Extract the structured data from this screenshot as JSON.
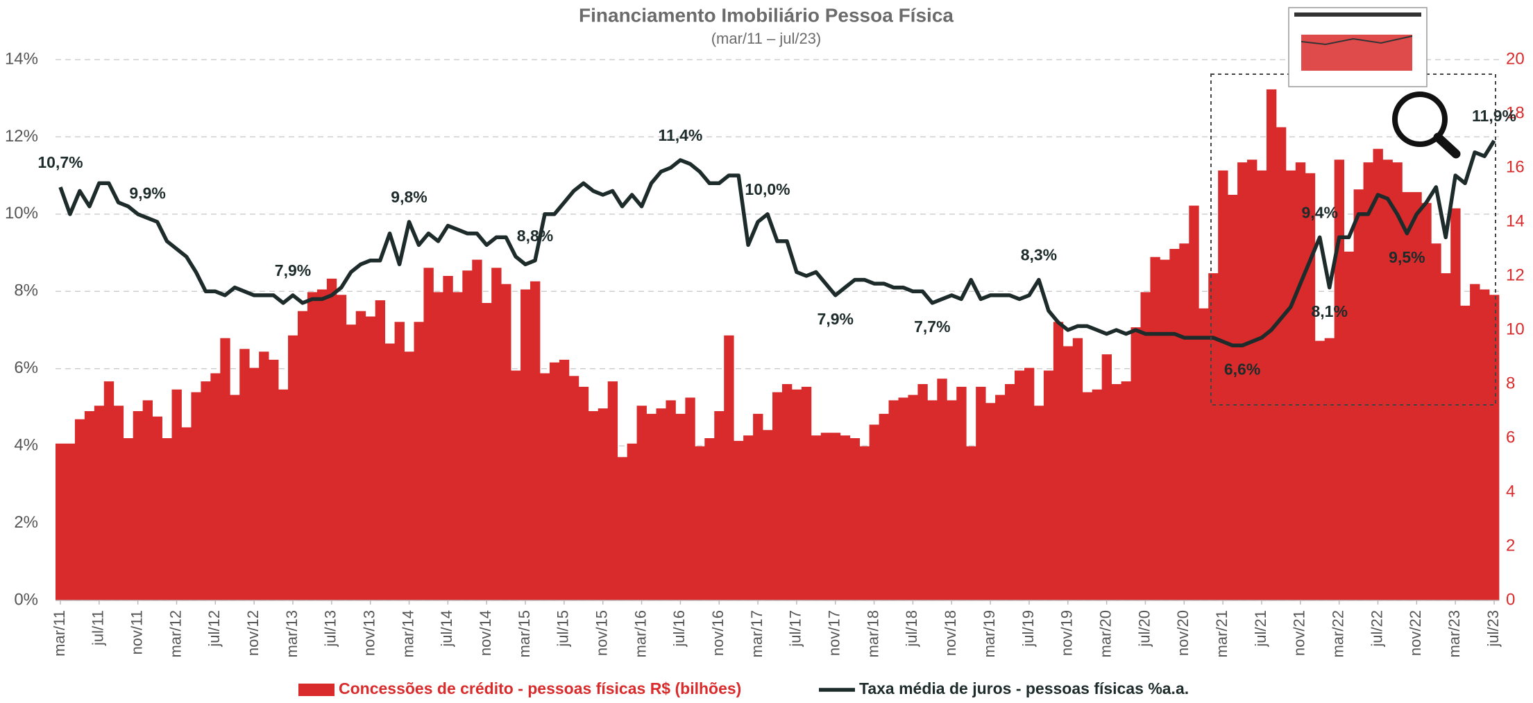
{
  "chart_data": {
    "type": "bar",
    "title": "Financiamento Imobiliário Pessoa Física",
    "subtitle": "(mar/11 – jul/23)",
    "categories": [
      "mar/11",
      null,
      null,
      null,
      "jul/11",
      null,
      null,
      null,
      "nov/11",
      null,
      null,
      null,
      "mar/12",
      null,
      null,
      null,
      "jul/12",
      null,
      null,
      null,
      "nov/12",
      null,
      null,
      null,
      "mar/13",
      null,
      null,
      null,
      "jul/13",
      null,
      null,
      null,
      "nov/13",
      null,
      null,
      null,
      "mar/14",
      null,
      null,
      null,
      "jul/14",
      null,
      null,
      null,
      "nov/14",
      null,
      null,
      null,
      "mar/15",
      null,
      null,
      null,
      "jul/15",
      null,
      null,
      null,
      "nov/15",
      null,
      null,
      null,
      "mar/16",
      null,
      null,
      null,
      "jul/16",
      null,
      null,
      null,
      "nov/16",
      null,
      null,
      null,
      "mar/17",
      null,
      null,
      null,
      "jul/17",
      null,
      null,
      null,
      "nov/17",
      null,
      null,
      null,
      "mar/18",
      null,
      null,
      null,
      "jul/18",
      null,
      null,
      null,
      "nov/18",
      null,
      null,
      null,
      "mar/19",
      null,
      null,
      null,
      "jul/19",
      null,
      null,
      null,
      "nov/19",
      null,
      null,
      null,
      "mar/20",
      null,
      null,
      null,
      "jul/20",
      null,
      null,
      null,
      "nov/20",
      null,
      null,
      null,
      "mar/21",
      null,
      null,
      null,
      "jul/21",
      null,
      null,
      null,
      "nov/21",
      null,
      null,
      null,
      "mar/22",
      null,
      null,
      null,
      "jul/22",
      null,
      null,
      null,
      "nov/22",
      null,
      null,
      null,
      "mar/23",
      null,
      null,
      null,
      "jul/23"
    ],
    "series": [
      {
        "name": "Concessões de crédito - pessoas físicas R$ (bilhões)",
        "type": "bar",
        "axis": "y2",
        "color": "#d92b2b",
        "values": [
          5.8,
          5.8,
          6.7,
          7.0,
          7.2,
          8.1,
          7.2,
          6.0,
          7.0,
          7.4,
          6.8,
          6.0,
          7.8,
          6.4,
          7.7,
          8.1,
          8.4,
          9.7,
          7.6,
          9.3,
          8.6,
          9.2,
          8.9,
          7.8,
          9.8,
          10.7,
          11.4,
          11.5,
          11.9,
          11.3,
          10.2,
          10.7,
          10.5,
          11.1,
          9.5,
          10.3,
          9.2,
          10.3,
          12.3,
          11.4,
          12.0,
          11.4,
          12.2,
          12.6,
          11.0,
          12.3,
          11.7,
          8.5,
          11.5,
          11.8,
          8.4,
          8.8,
          8.9,
          8.3,
          7.9,
          7.0,
          7.1,
          8.1,
          5.3,
          5.8,
          7.2,
          6.9,
          7.1,
          7.4,
          6.9,
          7.5,
          5.7,
          6.0,
          7.0,
          9.8,
          5.9,
          6.1,
          6.9,
          6.3,
          7.7,
          8.0,
          7.8,
          7.9,
          6.1,
          6.2,
          6.2,
          6.1,
          6.0,
          5.7,
          6.5,
          6.9,
          7.4,
          7.5,
          7.6,
          8.0,
          7.4,
          8.2,
          7.4,
          7.9,
          5.7,
          7.9,
          7.3,
          7.6,
          8.0,
          8.5,
          8.6,
          7.2,
          8.5,
          10.3,
          9.4,
          9.7,
          7.7,
          7.8,
          9.1,
          8.0,
          8.1,
          10.1,
          11.4,
          12.7,
          12.6,
          13.0,
          13.2,
          14.6,
          10.8,
          12.1,
          15.9,
          15.0,
          16.2,
          16.3,
          15.9,
          18.9,
          17.5,
          15.9,
          16.2,
          15.8,
          9.6,
          9.7,
          16.3,
          12.9,
          15.2,
          16.2,
          16.7,
          16.3,
          16.2,
          15.1,
          15.1,
          14.7,
          13.2,
          12.1,
          14.5,
          10.9,
          11.7,
          11.5,
          11.3
        ]
      },
      {
        "name": "Taxa média de juros - pessoas físicas %a.a.",
        "type": "line",
        "color": "#1e2b2b",
        "values": [
          10.7,
          10.0,
          10.6,
          10.2,
          10.8,
          10.8,
          10.3,
          10.2,
          10.0,
          9.9,
          9.8,
          9.3,
          9.1,
          8.9,
          8.5,
          8.0,
          8.0,
          7.9,
          8.1,
          8.0,
          7.9,
          7.9,
          7.9,
          7.7,
          7.9,
          7.7,
          7.8,
          7.8,
          7.9,
          8.1,
          8.5,
          8.7,
          8.8,
          8.8,
          9.5,
          8.7,
          9.8,
          9.2,
          9.5,
          9.3,
          9.7,
          9.6,
          9.5,
          9.5,
          9.2,
          9.4,
          9.4,
          8.9,
          8.7,
          8.8,
          10.0,
          10.0,
          10.3,
          10.6,
          10.8,
          10.6,
          10.5,
          10.6,
          10.2,
          10.5,
          10.2,
          10.8,
          11.1,
          11.2,
          11.4,
          11.3,
          11.1,
          10.8,
          10.8,
          11.0,
          11.0,
          9.2,
          9.8,
          10.0,
          9.3,
          9.3,
          8.5,
          8.4,
          8.5,
          8.2,
          7.9,
          8.1,
          8.3,
          8.3,
          8.2,
          8.2,
          8.1,
          8.1,
          8.0,
          8.0,
          7.7,
          7.8,
          7.9,
          7.8,
          8.3,
          7.8,
          7.9,
          7.9,
          7.9,
          7.8,
          7.9,
          8.3,
          7.5,
          7.2,
          7.0,
          7.1,
          7.1,
          7.0,
          6.9,
          7.0,
          6.9,
          7.0,
          6.9,
          6.9,
          6.9,
          6.9,
          6.8,
          6.8,
          6.8,
          6.8,
          6.7,
          6.6,
          6.6,
          6.7,
          6.8,
          7.0,
          7.3,
          7.6,
          8.2,
          8.8,
          9.4,
          8.1,
          9.4,
          9.4,
          10.0,
          10.0,
          10.5,
          10.4,
          10.0,
          9.5,
          10.0,
          10.3,
          10.7,
          9.4,
          11.0,
          10.8,
          11.6,
          11.5,
          11.9
        ],
        "value_labels": [
          "10,7%",
          null,
          null,
          null,
          null,
          null,
          null,
          null,
          null,
          "9,9%",
          null,
          null,
          null,
          null,
          null,
          null,
          null,
          null,
          null,
          null,
          null,
          null,
          null,
          null,
          "7,9%",
          null,
          null,
          null,
          null,
          null,
          null,
          null,
          null,
          null,
          null,
          null,
          "9,8%",
          null,
          null,
          null,
          null,
          null,
          null,
          null,
          null,
          null,
          null,
          null,
          null,
          "8,8%",
          null,
          null,
          null,
          null,
          null,
          null,
          null,
          null,
          null,
          null,
          null,
          null,
          null,
          null,
          "11,4%",
          null,
          null,
          null,
          null,
          null,
          null,
          null,
          null,
          "10,0%",
          null,
          null,
          null,
          null,
          null,
          null,
          "7,9%",
          null,
          null,
          null,
          null,
          null,
          null,
          null,
          null,
          null,
          "7,7%",
          null,
          null,
          null,
          null,
          null,
          null,
          null,
          null,
          null,
          null,
          "8,3%",
          null,
          null,
          null,
          null,
          null,
          null,
          null,
          null,
          null,
          null,
          null,
          null,
          null,
          null,
          null,
          null,
          null,
          null,
          null,
          null,
          "6,6%",
          null,
          null,
          null,
          null,
          null,
          null,
          null,
          "9,4%",
          "8,1%",
          null,
          null,
          null,
          null,
          null,
          null,
          null,
          "9,5%",
          null,
          null,
          null,
          null,
          null,
          null,
          null,
          null,
          "11,9%"
        ]
      }
    ],
    "ylim": [
      0,
      14
    ],
    "yticks": [
      {
        "value": 0,
        "label": "0%"
      },
      {
        "value": 2,
        "label": "2%"
      },
      {
        "value": 4,
        "label": "4%"
      },
      {
        "value": 6,
        "label": "6%"
      },
      {
        "value": 8,
        "label": "8%"
      },
      {
        "value": 10,
        "label": "10%"
      },
      {
        "value": 12,
        "label": "12%"
      },
      {
        "value": 14,
        "label": "14%"
      }
    ],
    "y2lim": [
      0,
      20
    ],
    "y2ticks": [
      0,
      2,
      4,
      6,
      8,
      10,
      12,
      14,
      16,
      18,
      20
    ],
    "grid": true,
    "legend": "bottom"
  }
}
